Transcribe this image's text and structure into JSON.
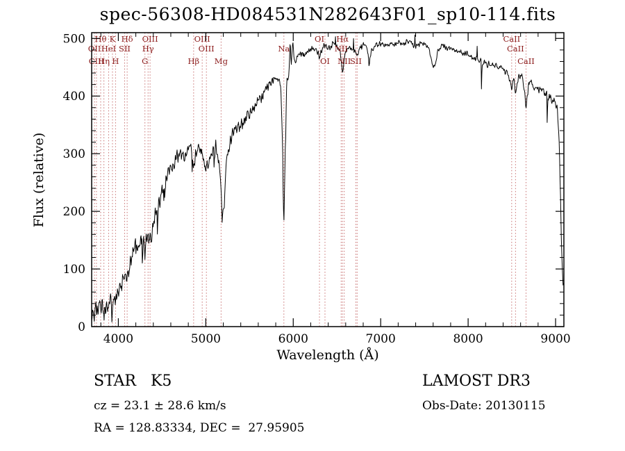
{
  "title": "spec-56308-HD084531N282643F01_sp10-114.fits",
  "chart_data": {
    "type": "line",
    "title": "spec-56308-HD084531N282643F01_sp10-114.fits",
    "xlabel": "Wavelength (Å)",
    "ylabel": "Flux (relative)",
    "xlim": [
      3695,
      9095
    ],
    "ylim": [
      0,
      510
    ],
    "x_ticks": [
      4000,
      5000,
      6000,
      7000,
      8000,
      9000
    ],
    "y_ticks": [
      0,
      100,
      200,
      300,
      400,
      500
    ],
    "x_minor_step": 200,
    "y_minor_step": 20,
    "grid": false,
    "legend": "none",
    "colors": {
      "spectrum": "#000000",
      "marker_line": "#c87070",
      "marker_label": "#8b1a1a",
      "axis": "#000000"
    },
    "series": [
      {
        "name": "flux",
        "points": [
          [
            3695,
            15
          ],
          [
            3720,
            22
          ],
          [
            3745,
            26
          ],
          [
            3770,
            30
          ],
          [
            3800,
            32
          ],
          [
            3830,
            28
          ],
          [
            3860,
            36
          ],
          [
            3890,
            40
          ],
          [
            3920,
            44
          ],
          [
            3933,
            36
          ],
          [
            3950,
            46
          ],
          [
            3968,
            42
          ],
          [
            3990,
            55
          ],
          [
            4020,
            68
          ],
          [
            4050,
            80
          ],
          [
            4080,
            88
          ],
          [
            4101,
            78
          ],
          [
            4130,
            105
          ],
          [
            4160,
            125
          ],
          [
            4200,
            148
          ],
          [
            4227,
            138
          ],
          [
            4260,
            158
          ],
          [
            4304,
            150
          ],
          [
            4340,
            163
          ],
          [
            4383,
            158
          ],
          [
            4420,
            192
          ],
          [
            4455,
            205
          ],
          [
            4500,
            238
          ],
          [
            4540,
            252
          ],
          [
            4580,
            268
          ],
          [
            4620,
            280
          ],
          [
            4660,
            292
          ],
          [
            4700,
            303
          ],
          [
            4740,
            298
          ],
          [
            4780,
            303
          ],
          [
            4820,
            310
          ],
          [
            4861,
            286
          ],
          [
            4895,
            302
          ],
          [
            4930,
            310
          ],
          [
            4960,
            300
          ],
          [
            5000,
            268
          ],
          [
            5040,
            288
          ],
          [
            5080,
            303
          ],
          [
            5115,
            312
          ],
          [
            5145,
            292
          ],
          [
            5168,
            245
          ],
          [
            5188,
            192
          ],
          [
            5212,
            215
          ],
          [
            5235,
            282
          ],
          [
            5275,
            322
          ],
          [
            5325,
            338
          ],
          [
            5380,
            348
          ],
          [
            5435,
            358
          ],
          [
            5490,
            368
          ],
          [
            5545,
            380
          ],
          [
            5600,
            390
          ],
          [
            5655,
            403
          ],
          [
            5710,
            415
          ],
          [
            5765,
            425
          ],
          [
            5820,
            432
          ],
          [
            5858,
            420
          ],
          [
            5880,
            300
          ],
          [
            5893,
            178
          ],
          [
            5908,
            300
          ],
          [
            5925,
            420
          ],
          [
            5950,
            442
          ],
          [
            5965,
            495
          ],
          [
            5978,
            452
          ],
          [
            5995,
            500
          ],
          [
            6008,
            458
          ],
          [
            6035,
            465
          ],
          [
            6080,
            474
          ],
          [
            6125,
            468
          ],
          [
            6170,
            478
          ],
          [
            6215,
            484
          ],
          [
            6260,
            480
          ],
          [
            6300,
            468
          ],
          [
            6330,
            482
          ],
          [
            6370,
            488
          ],
          [
            6415,
            484
          ],
          [
            6460,
            490
          ],
          [
            6505,
            486
          ],
          [
            6535,
            480
          ],
          [
            6563,
            438
          ],
          [
            6585,
            470
          ],
          [
            6615,
            483
          ],
          [
            6660,
            486
          ],
          [
            6700,
            478
          ],
          [
            6730,
            470
          ],
          [
            6765,
            484
          ],
          [
            6810,
            490
          ],
          [
            6848,
            482
          ],
          [
            6868,
            452
          ],
          [
            6890,
            478
          ],
          [
            6930,
            486
          ],
          [
            6975,
            490
          ],
          [
            7020,
            492
          ],
          [
            7065,
            488
          ],
          [
            7110,
            493
          ],
          [
            7155,
            489
          ],
          [
            7200,
            493
          ],
          [
            7250,
            490
          ],
          [
            7300,
            494
          ],
          [
            7350,
            491
          ],
          [
            7400,
            487
          ],
          [
            7450,
            492
          ],
          [
            7500,
            490
          ],
          [
            7555,
            481
          ],
          [
            7600,
            448
          ],
          [
            7622,
            456
          ],
          [
            7660,
            481
          ],
          [
            7705,
            488
          ],
          [
            7755,
            485
          ],
          [
            7805,
            482
          ],
          [
            7855,
            480
          ],
          [
            7905,
            478
          ],
          [
            7955,
            474
          ],
          [
            8005,
            471
          ],
          [
            8055,
            467
          ],
          [
            8105,
            464
          ],
          [
            8155,
            461
          ],
          [
            8205,
            457
          ],
          [
            8255,
            454
          ],
          [
            8305,
            452
          ],
          [
            8355,
            450
          ],
          [
            8405,
            447
          ],
          [
            8455,
            438
          ],
          [
            8498,
            412
          ],
          [
            8520,
            432
          ],
          [
            8542,
            408
          ],
          [
            8580,
            436
          ],
          [
            8625,
            430
          ],
          [
            8662,
            382
          ],
          [
            8695,
            426
          ],
          [
            8735,
            420
          ],
          [
            8775,
            415
          ],
          [
            8815,
            412
          ],
          [
            8855,
            407
          ],
          [
            8900,
            403
          ],
          [
            8945,
            397
          ],
          [
            8990,
            392
          ],
          [
            9020,
            382
          ],
          [
            9045,
            300
          ],
          [
            9065,
            160
          ],
          [
            9085,
            70
          ]
        ]
      }
    ],
    "line_markers": [
      {
        "wavelength": 3727,
        "label": "OII",
        "row": 2
      },
      {
        "wavelength": 3750,
        "label": "CIII",
        "row": 3
      },
      {
        "wavelength": 3798,
        "label": "Hθ",
        "row": 1
      },
      {
        "wavelength": 3835,
        "label": "Hη",
        "row": 3
      },
      {
        "wavelength": 3889,
        "label": "HeI",
        "row": 2
      },
      {
        "wavelength": 3933,
        "label": "K",
        "row": 1
      },
      {
        "wavelength": 3968,
        "label": "H",
        "row": 3
      },
      {
        "wavelength": 4072,
        "label": "SII",
        "row": 2
      },
      {
        "wavelength": 4101,
        "label": "Hδ",
        "row": 1
      },
      {
        "wavelength": 4304,
        "label": "G",
        "row": 3
      },
      {
        "wavelength": 4340,
        "label": "Hγ",
        "row": 2
      },
      {
        "wavelength": 4363,
        "label": "OIII",
        "row": 1
      },
      {
        "wavelength": 4861,
        "label": "Hβ",
        "row": 3
      },
      {
        "wavelength": 4959,
        "label": "OIII",
        "row": 1
      },
      {
        "wavelength": 5007,
        "label": "OIII",
        "row": 2
      },
      {
        "wavelength": 5175,
        "label": "Mg",
        "row": 3
      },
      {
        "wavelength": 5893,
        "label": "Na",
        "row": 2
      },
      {
        "wavelength": 6300,
        "label": "OI",
        "row": 1
      },
      {
        "wavelength": 6363,
        "label": "OI",
        "row": 3
      },
      {
        "wavelength": 6548,
        "label": "NII",
        "row": 2
      },
      {
        "wavelength": 6563,
        "label": "Hα",
        "row": 1
      },
      {
        "wavelength": 6583,
        "label": "NII",
        "row": 3
      },
      {
        "wavelength": 6716,
        "label": "SII",
        "row": 3
      },
      {
        "wavelength": 6731,
        "label": "",
        "row": 0
      },
      {
        "wavelength": 8498,
        "label": "CaII",
        "row": 1
      },
      {
        "wavelength": 8542,
        "label": "CaII",
        "row": 2
      },
      {
        "wavelength": 8662,
        "label": "CaII",
        "row": 3
      }
    ]
  },
  "annotations": {
    "object_type": "STAR   K5",
    "cz": "cz = 23.1 ± 28.6 km/s",
    "ra_dec": "RA = 128.83334, DEC =  27.95905",
    "survey": "LAMOST DR3",
    "obs_date": "Obs-Date: 20130115"
  }
}
